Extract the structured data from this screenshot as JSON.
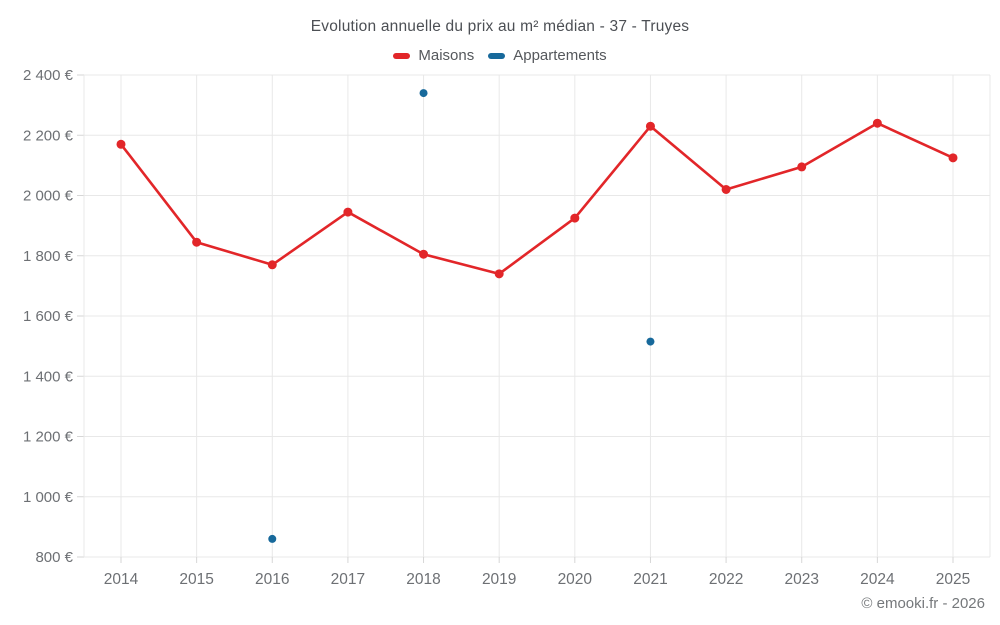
{
  "chart": {
    "title": "Evolution annuelle du prix au m² médian - 37 - Truyes",
    "footer": "© emooki.fr - 2026",
    "colors": {
      "grid": "#e8e8e8",
      "tick": "#d6d6d6",
      "axis_label": "#6d7074",
      "title_text": "#4c4f54",
      "legend_text": "#55585c",
      "footer_text": "#75787b"
    }
  },
  "chart_data": {
    "type": "line",
    "title": "Evolution annuelle du prix au m² médian - 37 - Truyes",
    "x": [
      "2014",
      "2015",
      "2016",
      "2017",
      "2018",
      "2019",
      "2020",
      "2021",
      "2022",
      "2023",
      "2024",
      "2025"
    ],
    "series": [
      {
        "name": "Maisons",
        "type": "line",
        "color": "#e22629",
        "values": [
          2170,
          1845,
          1770,
          1945,
          1805,
          1740,
          1925,
          2230,
          2020,
          2095,
          2240,
          2125
        ]
      },
      {
        "name": "Appartements",
        "type": "scatter",
        "color": "#17699b",
        "values": [
          null,
          null,
          860,
          null,
          2340,
          null,
          null,
          1515,
          null,
          null,
          null,
          null
        ]
      }
    ],
    "ylim": [
      800,
      2400
    ],
    "ytick_step": 200,
    "yticks": [
      {
        "v": 800,
        "label": "800 €"
      },
      {
        "v": 1000,
        "label": "1 000 €"
      },
      {
        "v": 1200,
        "label": "1 200 €"
      },
      {
        "v": 1400,
        "label": "1 400 €"
      },
      {
        "v": 1600,
        "label": "1 600 €"
      },
      {
        "v": 1800,
        "label": "1 800 €"
      },
      {
        "v": 2000,
        "label": "2 000 €"
      },
      {
        "v": 2200,
        "label": "2 200 €"
      },
      {
        "v": 2400,
        "label": "2 400 €"
      }
    ],
    "ylabel": "",
    "xlabel": "",
    "grid": true,
    "legend_position": "top"
  }
}
